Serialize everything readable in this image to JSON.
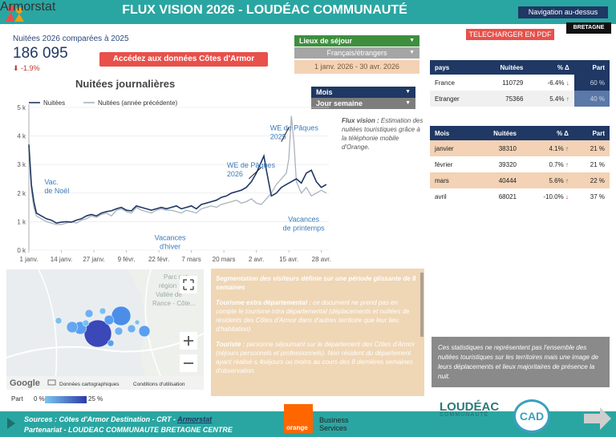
{
  "header": {
    "title": "FLUX VISION 2026  - LOUDÉAC COMMUNAUTÉ",
    "nav_button": "Navigation au-dessus",
    "pdf_button": "TELECHARGER EN PDF",
    "bretagne_logo": "BRETAGNE"
  },
  "kpi": {
    "label": "Nuitées 2026 comparées à 2025",
    "value": "186 095",
    "delta": "-1.9%",
    "cta": "Accédez aux données Côtes d'Armor"
  },
  "filters": {
    "lieu_label": "Lieux de séjour",
    "fr_label": "Français/étrangers",
    "date_range": "1 janv. 2026 - 30 avr. 2026",
    "mois_label": "Mois",
    "jour_label": "Jour semaine"
  },
  "chart_data": {
    "type": "line",
    "title": "Nuitées journalières",
    "y_ticks": [
      "0 k",
      "1 k",
      "2 k",
      "3 k",
      "4 k",
      "5 k"
    ],
    "ylim": [
      0,
      5000
    ],
    "x_ticks": [
      "1 janv.",
      "14 janv.",
      "27 janv.",
      "9 févr.",
      "22 févr.",
      "7 mars",
      "20 mars",
      "2 avr.",
      "15 avr.",
      "28 avr."
    ],
    "x_tick_days": [
      0,
      13,
      26,
      39,
      52,
      65,
      78,
      91,
      104,
      117
    ],
    "xlim": [
      0,
      120
    ],
    "series": [
      {
        "name": "Nuitées",
        "color": "#1f3864",
        "points": [
          [
            0,
            3700
          ],
          [
            1,
            2300
          ],
          [
            2,
            1700
          ],
          [
            3,
            1300
          ],
          [
            5,
            1200
          ],
          [
            7,
            1100
          ],
          [
            9,
            1050
          ],
          [
            11,
            950
          ],
          [
            13,
            980
          ],
          [
            15,
            1000
          ],
          [
            17,
            980
          ],
          [
            19,
            1050
          ],
          [
            21,
            1100
          ],
          [
            23,
            1200
          ],
          [
            25,
            1250
          ],
          [
            27,
            1200
          ],
          [
            29,
            1300
          ],
          [
            31,
            1350
          ],
          [
            33,
            1380
          ],
          [
            35,
            1450
          ],
          [
            37,
            1500
          ],
          [
            39,
            1400
          ],
          [
            41,
            1380
          ],
          [
            43,
            1550
          ],
          [
            45,
            1500
          ],
          [
            47,
            1450
          ],
          [
            49,
            1400
          ],
          [
            51,
            1450
          ],
          [
            53,
            1500
          ],
          [
            55,
            1450
          ],
          [
            57,
            1500
          ],
          [
            59,
            1550
          ],
          [
            61,
            1450
          ],
          [
            63,
            1500
          ],
          [
            65,
            1550
          ],
          [
            67,
            1450
          ],
          [
            69,
            1600
          ],
          [
            71,
            1650
          ],
          [
            73,
            1700
          ],
          [
            75,
            1750
          ],
          [
            77,
            1850
          ],
          [
            79,
            1900
          ],
          [
            81,
            2000
          ],
          [
            83,
            2050
          ],
          [
            85,
            2100
          ],
          [
            87,
            2200
          ],
          [
            89,
            2400
          ],
          [
            91,
            2700
          ],
          [
            93,
            3100
          ],
          [
            94,
            3300
          ],
          [
            95,
            2800
          ],
          [
            97,
            1900
          ],
          [
            99,
            2000
          ],
          [
            101,
            2200
          ],
          [
            103,
            2300
          ],
          [
            105,
            2400
          ],
          [
            107,
            2500
          ],
          [
            109,
            2350
          ],
          [
            111,
            2700
          ],
          [
            113,
            2800
          ],
          [
            115,
            2400
          ],
          [
            117,
            2200
          ],
          [
            119,
            2300
          ]
        ]
      },
      {
        "name": "Nuitées (année précédente)",
        "color": "#a9b3bd",
        "points": [
          [
            0,
            3500
          ],
          [
            1,
            2100
          ],
          [
            2,
            1500
          ],
          [
            3,
            1200
          ],
          [
            5,
            1100
          ],
          [
            7,
            1000
          ],
          [
            9,
            950
          ],
          [
            11,
            900
          ],
          [
            13,
            900
          ],
          [
            15,
            950
          ],
          [
            17,
            1000
          ],
          [
            19,
            950
          ],
          [
            21,
            1050
          ],
          [
            23,
            1100
          ],
          [
            25,
            1200
          ],
          [
            27,
            1150
          ],
          [
            29,
            1250
          ],
          [
            31,
            1300
          ],
          [
            33,
            1200
          ],
          [
            35,
            1400
          ],
          [
            37,
            1450
          ],
          [
            39,
            1350
          ],
          [
            41,
            1300
          ],
          [
            43,
            1500
          ],
          [
            45,
            1400
          ],
          [
            47,
            1350
          ],
          [
            49,
            1300
          ],
          [
            51,
            1400
          ],
          [
            53,
            1450
          ],
          [
            55,
            1400
          ],
          [
            57,
            1400
          ],
          [
            59,
            1350
          ],
          [
            61,
            1300
          ],
          [
            63,
            1400
          ],
          [
            65,
            1350
          ],
          [
            67,
            1300
          ],
          [
            69,
            1450
          ],
          [
            71,
            1500
          ],
          [
            73,
            1550
          ],
          [
            75,
            1500
          ],
          [
            77,
            1600
          ],
          [
            79,
            1650
          ],
          [
            81,
            1700
          ],
          [
            83,
            1750
          ],
          [
            85,
            1650
          ],
          [
            87,
            1700
          ],
          [
            89,
            1800
          ],
          [
            91,
            1650
          ],
          [
            93,
            1600
          ],
          [
            95,
            1800
          ],
          [
            97,
            2000
          ],
          [
            99,
            2300
          ],
          [
            101,
            2500
          ],
          [
            103,
            2700
          ],
          [
            104,
            3200
          ],
          [
            105,
            4700
          ],
          [
            106,
            3800
          ],
          [
            107,
            2400
          ],
          [
            109,
            2000
          ],
          [
            111,
            2200
          ],
          [
            113,
            1900
          ],
          [
            115,
            2000
          ],
          [
            117,
            2100
          ],
          [
            119,
            2000
          ]
        ]
      }
    ],
    "annotations": [
      {
        "text": "Vac. de Noël",
        "day": 3,
        "value": 2300
      },
      {
        "text": "WE de Pâques 2026",
        "day": 85,
        "value": 2900
      },
      {
        "text": "WE de Pâques 2025",
        "day": 101,
        "value": 4200
      },
      {
        "text": "Vacances d'hiver",
        "day": 52,
        "value": 350
      },
      {
        "text": "Vacances de printemps",
        "day": 108,
        "value": 1000
      }
    ]
  },
  "flux_note": {
    "bold": "Flux vision :",
    "rest": " Estimation des nuitées touristiques grâce à la téléphonie mobile d'Orange."
  },
  "pays_table": {
    "headers": [
      "pays",
      "Nuitées",
      "% Δ",
      "Part"
    ],
    "rows": [
      {
        "pays": "France",
        "nuitees": "110729",
        "delta": "-6.4%",
        "dir": "down",
        "part": "60 %",
        "part_value": 60
      },
      {
        "pays": "Etranger",
        "nuitees": "75366",
        "delta": "5.4%",
        "dir": "up",
        "part": "40 %",
        "part_value": 40
      }
    ]
  },
  "mois_table": {
    "headers": [
      "Mois",
      "Nuitées",
      "% Δ",
      "Part"
    ],
    "rows": [
      {
        "mois": "janvier",
        "nuitees": "38310",
        "delta": "4.1%",
        "dir": "up",
        "part": "21 %"
      },
      {
        "mois": "février",
        "nuitees": "39320",
        "delta": "0.7%",
        "dir": "up",
        "part": "21 %"
      },
      {
        "mois": "mars",
        "nuitees": "40444",
        "delta": "5.6%",
        "dir": "up",
        "part": "22 %"
      },
      {
        "mois": "avril",
        "nuitees": "68021",
        "delta": "-10.0%",
        "dir": "down",
        "part": "37 %"
      }
    ]
  },
  "map": {
    "labels": [
      "Parc nat",
      "région",
      "Vallée de",
      "Rance - Côte..."
    ],
    "google": "Google",
    "keyboard": "Données cartographiques",
    "terms": "Conditions d'utilisation",
    "legend_label": "Part",
    "legend_min": "0 %",
    "legend_max": "25 %"
  },
  "seg_panel": {
    "heading": "Segmentation des visiteurs définie sur une période glissante de 8 semaines",
    "p1_bold": "Tourisme extra départemental :",
    "p1": " ce document ne prend pas en compte le tourisme intra départemental (déplacements et nuitées de résidents des Côtes d'Armor dans d'autres territoire que leur lieu d'habitation).",
    "p2_bold": "Touriste :",
    "p2": " personne séjournant sur le département des Côtes d'Armor (séjours personnels et professionnels). Non résident du département ayant réalisé ≤ 4séjours ou moins au cours des 8 dernières semaines d'observation."
  },
  "stat_note": "Ces statistiques ne représentent pas l'ensemble des nuitées touristiques sur les territoires mais une image de leurs déplacements et lieux majoritaires de présence la nuit.",
  "footer": {
    "sources_prefix": "Sources : Côtes d'Armor Destination  - CRT -  ",
    "sources_link": "Armorstat",
    "partner": "Partenariat - LOUDEAC COMMUNAUTE BRETAGNE CENTRE",
    "orange": "orange",
    "business": "Business",
    "services": "Services",
    "loudeac": "LOUDÉAC",
    "loudeac_sub": "COMMUNAUTÉ",
    "cad": "CAD",
    "armorstat": "Armorstat"
  }
}
